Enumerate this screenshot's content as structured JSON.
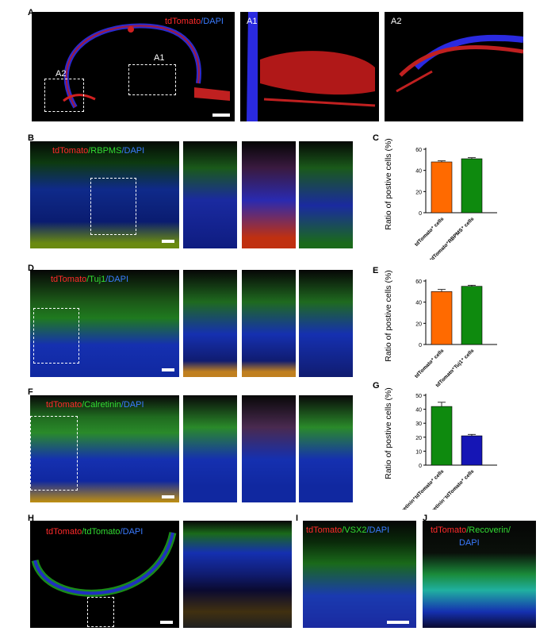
{
  "panels": {
    "A": {
      "letter": "A",
      "stain": [
        "tdTomato",
        "/DAPI"
      ],
      "box1": "A1",
      "box2": "A2",
      "inset1": "A1",
      "inset2": "A2"
    },
    "B": {
      "letter": "B",
      "stain": [
        "tdTomato",
        "/RBPMS",
        "/DAPI"
      ]
    },
    "C": {
      "letter": "C"
    },
    "D": {
      "letter": "D",
      "stain": [
        "tdTomato",
        "/Tuj1",
        "/DAPI"
      ]
    },
    "E": {
      "letter": "E"
    },
    "F": {
      "letter": "F",
      "stain": [
        "tdTomato",
        "/Calretinin",
        "/DAPI"
      ]
    },
    "G": {
      "letter": "G"
    },
    "H": {
      "letter": "H",
      "stain": [
        "tdTomato",
        "/tdTomato",
        "/DAPI"
      ]
    },
    "I": {
      "letter": "I",
      "stain": [
        "tdTomato",
        "/VSX2",
        "/DAPI"
      ]
    },
    "J": {
      "letter": "J",
      "stain": [
        "tdTomato",
        "/Recoverin/",
        "DAPI"
      ]
    }
  },
  "colors": {
    "orange": "#ff6a00",
    "green": "#0e8a0e",
    "blue": "#1515b5"
  },
  "chart_data": [
    {
      "panel": "C",
      "type": "bar",
      "categories": [
        "tdTomato⁺ cells",
        "tdTomato⁺RBPMS⁺ cells"
      ],
      "values": [
        48,
        51
      ],
      "errors": [
        1,
        1
      ],
      "colors": [
        "#ff6a00",
        "#0e8a0e"
      ],
      "ylabel": "Ratio of postive cells (%)",
      "ylim": [
        0,
        60
      ],
      "yticks": [
        "0",
        "20",
        "40",
        "60"
      ]
    },
    {
      "panel": "E",
      "type": "bar",
      "categories": [
        "tdTomato⁺ cells",
        "tdTomato⁺Tuj1⁺ cells"
      ],
      "values": [
        50,
        55
      ],
      "errors": [
        2,
        1
      ],
      "colors": [
        "#ff6a00",
        "#0e8a0e"
      ],
      "ylabel": "Ratio of postive cells (%)",
      "ylim": [
        0,
        60
      ],
      "yticks": [
        "0",
        "20",
        "40",
        "60"
      ]
    },
    {
      "panel": "G",
      "type": "bar",
      "categories": [
        "Calretinin⁺tdTomato⁺ cells",
        "Calretinin⁻tdTomato⁺ cells"
      ],
      "values": [
        42,
        21
      ],
      "errors": [
        3,
        1
      ],
      "colors": [
        "#0e8a0e",
        "#1515b5"
      ],
      "ylabel": "Ratio of postive cells (%)",
      "ylim": [
        0,
        50
      ],
      "yticks": [
        "0",
        "10",
        "20",
        "30",
        "40",
        "50"
      ]
    }
  ]
}
